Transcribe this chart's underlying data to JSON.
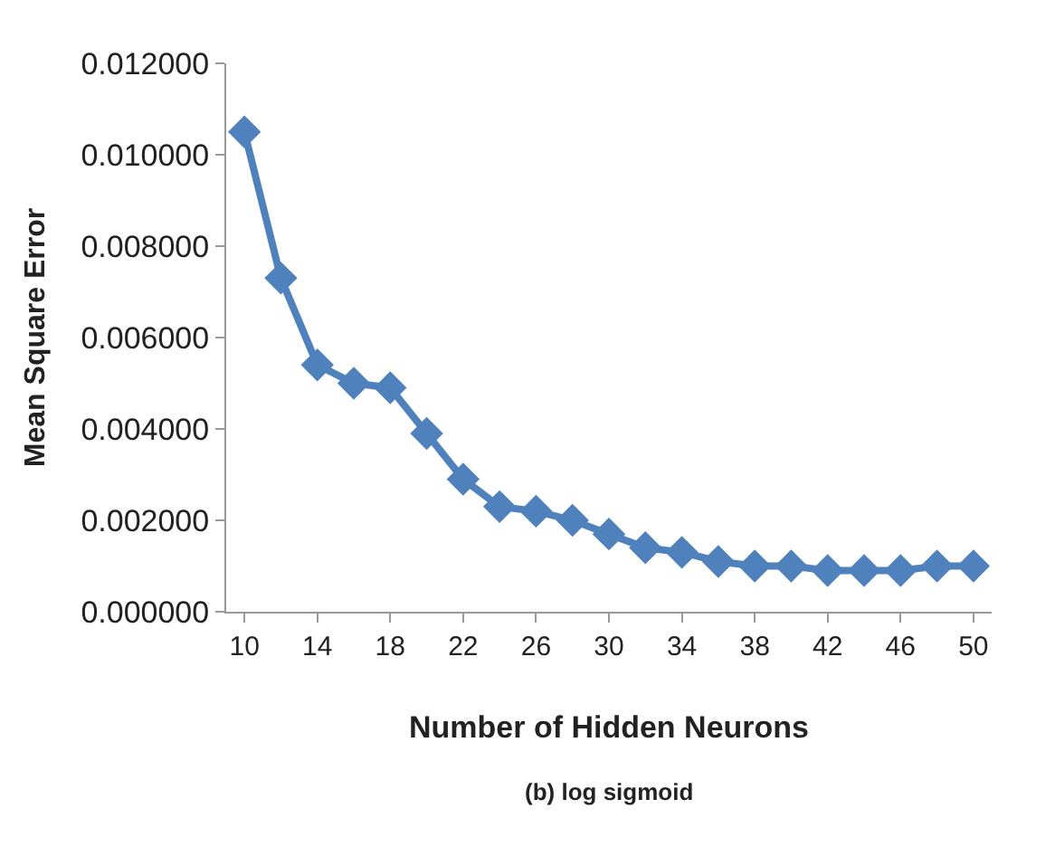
{
  "chart_data": {
    "type": "line",
    "xlabel": "Number of Hidden Neurons",
    "ylabel": "Mean Square Error",
    "annotations": [
      "(b) log sigmoid"
    ],
    "categories": [
      "10",
      null,
      "14",
      null,
      "18",
      null,
      "22",
      null,
      "26",
      null,
      "30",
      null,
      "34",
      null,
      "38",
      null,
      "42",
      null,
      "46",
      null,
      "50"
    ],
    "series": [
      {
        "color": "#4f81bd",
        "values": [
          0.0105,
          0.0073,
          0.0054,
          0.005,
          0.0049,
          0.0039,
          0.0029,
          0.0023,
          0.0022,
          0.002,
          0.0017,
          0.0014,
          0.0013,
          0.0011,
          0.001,
          0.001,
          0.0009,
          0.0009,
          0.0009,
          0.001,
          0.001
        ]
      }
    ],
    "ylim": [
      0,
      0.012
    ],
    "yticks": [
      {
        "value": 0,
        "label": "0.000000"
      },
      {
        "value": 0.002,
        "label": "0.002000"
      },
      {
        "value": 0.004,
        "label": "0.004000"
      },
      {
        "value": 0.006,
        "label": "0.006000"
      },
      {
        "value": 0.008,
        "label": "0.008000"
      },
      {
        "value": 0.01,
        "label": "0.010000"
      },
      {
        "value": 0.012,
        "label": "0.012000"
      }
    ],
    "marker": "diamond",
    "line_style": "solid",
    "legend": false
  }
}
